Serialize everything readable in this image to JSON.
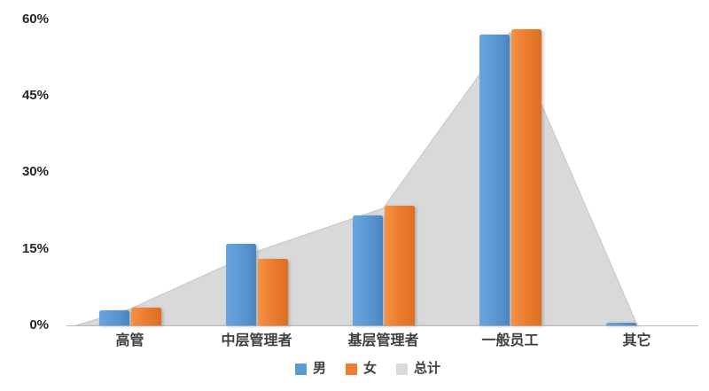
{
  "chart_data": {
    "type": "bar",
    "title": "",
    "xlabel": "",
    "ylabel": "",
    "categories": [
      "高管",
      "中层管理者",
      "基层管理者",
      "一般员工",
      "其它"
    ],
    "series": [
      {
        "name": "男",
        "type": "bar",
        "color": "#5B9BD5",
        "values": [
          3,
          16,
          21.5,
          57,
          0.5
        ]
      },
      {
        "name": "女",
        "type": "bar",
        "color": "#ED7D31",
        "values": [
          3.4,
          13,
          23.5,
          58,
          0
        ]
      },
      {
        "name": "总计",
        "type": "area",
        "color": "#D9D9D9",
        "values": [
          3.2,
          14.5,
          23,
          57.5,
          0.3
        ]
      }
    ],
    "ytick_labels": [
      "0%",
      "15%",
      "30%",
      "45%",
      "60%"
    ],
    "ytick_values": [
      0,
      15,
      30,
      45,
      60
    ],
    "ylim": [
      0,
      60
    ],
    "grid": false,
    "legend_position": "bottom",
    "legend_entries": [
      "男",
      "女",
      "总计"
    ]
  }
}
